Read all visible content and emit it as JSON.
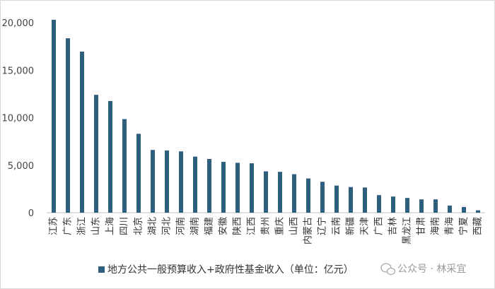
{
  "chart_data": {
    "type": "bar",
    "categories": [
      "江苏",
      "广东",
      "浙江",
      "山东",
      "上海",
      "四川",
      "北京",
      "湖北",
      "河北",
      "河南",
      "湖南",
      "福建",
      "安徽",
      "陕西",
      "江西",
      "贵州",
      "重庆",
      "山西",
      "内蒙古",
      "辽宁",
      "云南",
      "新疆",
      "天津",
      "广西",
      "吉林",
      "黑龙江",
      "甘肃",
      "海南",
      "青海",
      "宁夏",
      "西藏"
    ],
    "series": [
      {
        "name": "地方公共一般预算收入+政府性基金收入（单位：亿元）",
        "values": [
          20300,
          18350,
          16950,
          12400,
          11750,
          9850,
          8300,
          6600,
          6550,
          6450,
          5900,
          5650,
          5350,
          5250,
          5200,
          4350,
          4300,
          4050,
          3600,
          3250,
          2850,
          2700,
          2650,
          1850,
          1700,
          1550,
          1400,
          1400,
          750,
          600,
          250
        ]
      }
    ],
    "ylim": [
      0,
      20000
    ],
    "yticks": [
      "0",
      "5,000",
      "10,000",
      "15,000",
      "20,000"
    ],
    "ytick_values": [
      0,
      5000,
      10000,
      15000,
      20000
    ],
    "grid": false,
    "legend_position": "bottom",
    "colors": {
      "bar": "#2e5f7f",
      "axis": "#bfbfbf"
    }
  },
  "watermark": "公众号 · 林采宜"
}
